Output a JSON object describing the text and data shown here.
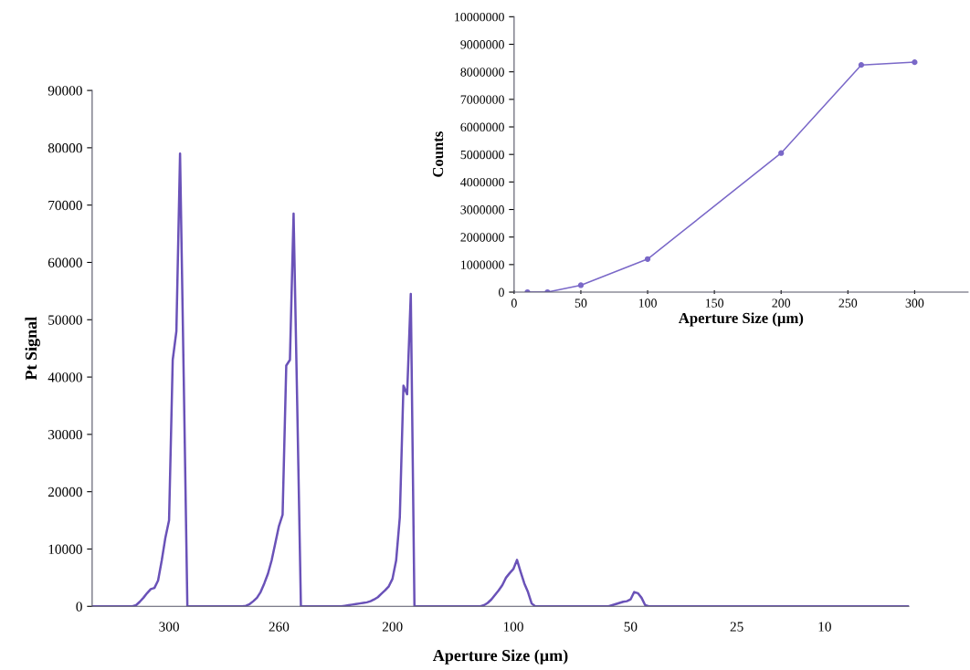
{
  "chart_data": [
    {
      "type": "line",
      "xlabel": "Aperture Size (µm)",
      "ylabel": "Pt Signal",
      "categories": [
        null,
        null,
        null,
        null,
        null,
        null,
        null,
        null,
        null,
        null,
        null,
        null,
        null,
        null,
        null,
        null,
        null,
        null,
        null,
        null,
        null,
        "300",
        null,
        null,
        null,
        null,
        null,
        null,
        null,
        null,
        null,
        null,
        null,
        null,
        null,
        null,
        null,
        null,
        null,
        null,
        null,
        null,
        null,
        null,
        null,
        null,
        null,
        null,
        null,
        null,
        null,
        "260",
        null,
        null,
        null,
        null,
        null,
        null,
        null,
        null,
        null,
        null,
        null,
        null,
        null,
        null,
        null,
        null,
        null,
        null,
        null,
        null,
        null,
        null,
        null,
        null,
        null,
        null,
        null,
        null,
        null,
        null,
        "200",
        null,
        null,
        null,
        null,
        null,
        null,
        null,
        null,
        null,
        null,
        null,
        null,
        null,
        null,
        null,
        null,
        null,
        null,
        null,
        null,
        null,
        null,
        null,
        null,
        null,
        null,
        null,
        null,
        null,
        null,
        null,
        null,
        "100",
        null,
        null,
        null,
        null,
        null,
        null,
        null,
        null,
        null,
        null,
        null,
        null,
        null,
        null,
        null,
        null,
        null,
        null,
        null,
        null,
        null,
        null,
        null,
        null,
        null,
        null,
        null,
        null,
        null,
        null,
        null,
        "50",
        null,
        null,
        null,
        null,
        null,
        null,
        null,
        null,
        null,
        null,
        null,
        null,
        null,
        null,
        null,
        null,
        null,
        null,
        null,
        null,
        null,
        null,
        null,
        null,
        null,
        null,
        null,
        null,
        "25",
        null,
        null,
        null,
        null,
        null,
        null,
        null,
        null,
        null,
        null,
        null,
        null,
        null,
        null,
        null,
        null,
        null,
        null,
        null,
        null,
        null,
        null,
        null,
        "10",
        null,
        null,
        null,
        null,
        null,
        null,
        null,
        null,
        null,
        null,
        null,
        null,
        null,
        null,
        null,
        null,
        null,
        null,
        null,
        null,
        null,
        null,
        null
      ],
      "series": [
        {
          "color": "#6a52b8",
          "values": [
            0,
            0,
            0,
            0,
            0,
            0,
            0,
            0,
            0,
            0,
            0,
            0,
            200,
            800,
            1500,
            2300,
            3000,
            3200,
            4500,
            8000,
            12000,
            15000,
            43000,
            48000,
            79000,
            40000,
            0,
            0,
            0,
            0,
            0,
            0,
            0,
            0,
            0,
            0,
            0,
            0,
            0,
            0,
            0,
            0,
            100,
            400,
            900,
            1500,
            2500,
            4000,
            5700,
            8000,
            11000,
            14000,
            16000,
            42000,
            43000,
            68500,
            35000,
            0,
            0,
            0,
            0,
            0,
            0,
            0,
            0,
            0,
            0,
            0,
            0,
            100,
            200,
            300,
            400,
            500,
            600,
            700,
            900,
            1200,
            1600,
            2200,
            2800,
            3500,
            4800,
            8000,
            15500,
            38500,
            37000,
            54500,
            0,
            0,
            0,
            0,
            0,
            0,
            0,
            0,
            0,
            0,
            0,
            0,
            0,
            0,
            0,
            0,
            0,
            0,
            0,
            200,
            600,
            1200,
            2000,
            2800,
            3700,
            5000,
            5800,
            6500,
            8100,
            6000,
            4000,
            2500,
            500,
            0,
            0,
            0,
            0,
            0,
            0,
            0,
            0,
            0,
            0,
            0,
            0,
            0,
            0,
            0,
            0,
            0,
            0,
            0,
            0,
            0,
            200,
            400,
            600,
            800,
            900,
            1200,
            2500,
            2300,
            1500,
            200,
            0,
            0,
            0,
            0,
            0,
            0,
            0,
            0,
            0,
            0,
            0,
            0,
            0,
            0,
            0,
            0,
            0,
            0,
            0,
            0,
            0,
            0,
            0,
            0,
            0,
            0,
            0,
            0,
            0,
            0,
            0,
            0,
            0,
            0,
            0,
            0,
            0,
            0,
            0,
            0,
            0,
            0,
            0,
            0,
            0,
            0,
            0,
            0,
            0,
            0,
            0,
            0,
            0,
            0,
            0,
            0,
            0,
            0,
            0,
            0,
            0,
            0,
            0,
            0,
            0,
            0,
            0,
            0,
            0,
            0,
            0,
            0
          ]
        }
      ],
      "ylim": [
        0,
        90000
      ],
      "yticks": [
        0,
        10000,
        20000,
        30000,
        40000,
        50000,
        60000,
        70000,
        80000,
        90000
      ],
      "grid": false,
      "legend": false
    },
    {
      "type": "line",
      "xlabel": "Aperture Size (µm)",
      "ylabel": "Counts",
      "x": [
        10,
        25,
        50,
        100,
        200,
        260,
        300
      ],
      "series": [
        {
          "color": "#7a68c8",
          "values": [
            0,
            0,
            250000,
            1200000,
            5050000,
            8250000,
            8350000
          ]
        }
      ],
      "xlim": [
        0,
        340
      ],
      "xticks": [
        0,
        50,
        100,
        150,
        200,
        250,
        300
      ],
      "ylim": [
        0,
        10000000
      ],
      "yticks": [
        0,
        1000000,
        2000000,
        3000000,
        4000000,
        5000000,
        6000000,
        7000000,
        8000000,
        9000000,
        10000000
      ],
      "marker": "circle",
      "grid": false,
      "legend": false
    }
  ]
}
